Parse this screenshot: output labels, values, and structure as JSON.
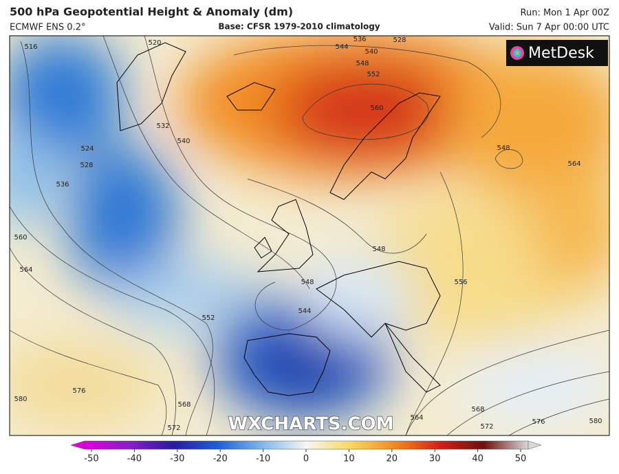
{
  "header": {
    "title": "500 hPa Geopotential Height & Anomaly (dm)",
    "model": "ECMWF ENS 0.2°",
    "base": "Base: CFSR 1979-2010 climatology",
    "run": "Run: Mon 1 Apr 00Z",
    "valid": "Valid: Sun 7 Apr 00:00 UTC"
  },
  "logo": "MetDesk",
  "watermark": "WXCHARTS.COM",
  "contour_labels": [
    516,
    520,
    524,
    528,
    532,
    536,
    540,
    560,
    564,
    552,
    544,
    548,
    548,
    556,
    548,
    536,
    540,
    544,
    548,
    552,
    528,
    560,
    576,
    580,
    568,
    572,
    564,
    568,
    572,
    576,
    580,
    564
  ],
  "colorbar": {
    "ticks": [
      -50,
      -40,
      -30,
      -20,
      -10,
      0,
      10,
      20,
      30,
      40,
      50
    ]
  }
}
